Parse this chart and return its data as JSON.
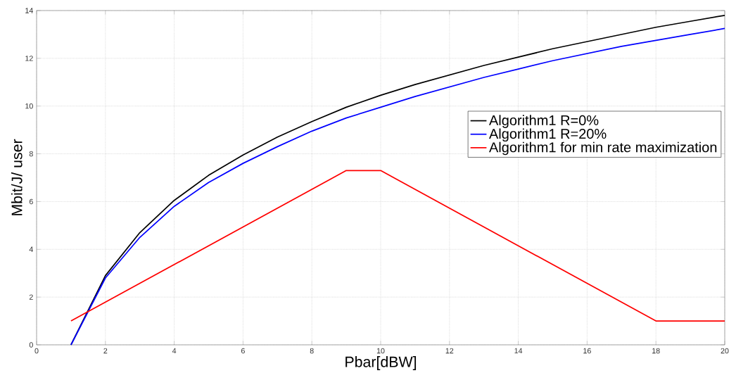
{
  "chart_data": {
    "type": "line",
    "xlabel": "Pbar[dBW]",
    "ylabel": "Mbit/J/ user",
    "xlim": [
      0,
      20
    ],
    "xticks": [
      0,
      2,
      4,
      6,
      8,
      10,
      12,
      14,
      16,
      18,
      20
    ],
    "ylim": [
      0,
      14
    ],
    "yticks": [
      0,
      2,
      4,
      6,
      8,
      10,
      12,
      14
    ],
    "grid": true,
    "legend": "right",
    "series": [
      {
        "name": "Algorithm1 R=0%",
        "color": "#000000",
        "x": [
          1,
          2,
          3,
          4,
          5,
          6,
          7,
          8,
          9,
          10,
          11,
          12,
          13,
          14,
          15,
          16,
          17,
          18,
          19,
          20
        ],
        "values": [
          0,
          2.9,
          4.7,
          6.05,
          7.1,
          7.95,
          8.7,
          9.35,
          9.95,
          10.45,
          10.9,
          11.3,
          11.7,
          12.05,
          12.4,
          12.7,
          13.0,
          13.3,
          13.55,
          13.8
        ]
      },
      {
        "name": "Algorithm1 R=20%",
        "color": "#0000ff",
        "x": [
          1,
          2,
          3,
          4,
          5,
          6,
          7,
          8,
          9,
          10,
          11,
          12,
          13,
          14,
          15,
          16,
          17,
          18,
          19,
          20
        ],
        "values": [
          0,
          2.8,
          4.5,
          5.8,
          6.8,
          7.6,
          8.3,
          8.95,
          9.5,
          9.95,
          10.4,
          10.8,
          11.2,
          11.55,
          11.9,
          12.2,
          12.5,
          12.75,
          13.0,
          13.25
        ]
      },
      {
        "name": "Algorithm1 for min rate maximization",
        "color": "#ff0000",
        "x": [
          1,
          9,
          10,
          18,
          20
        ],
        "values": [
          1.0,
          7.3,
          7.3,
          1.0,
          1.0
        ]
      }
    ]
  }
}
